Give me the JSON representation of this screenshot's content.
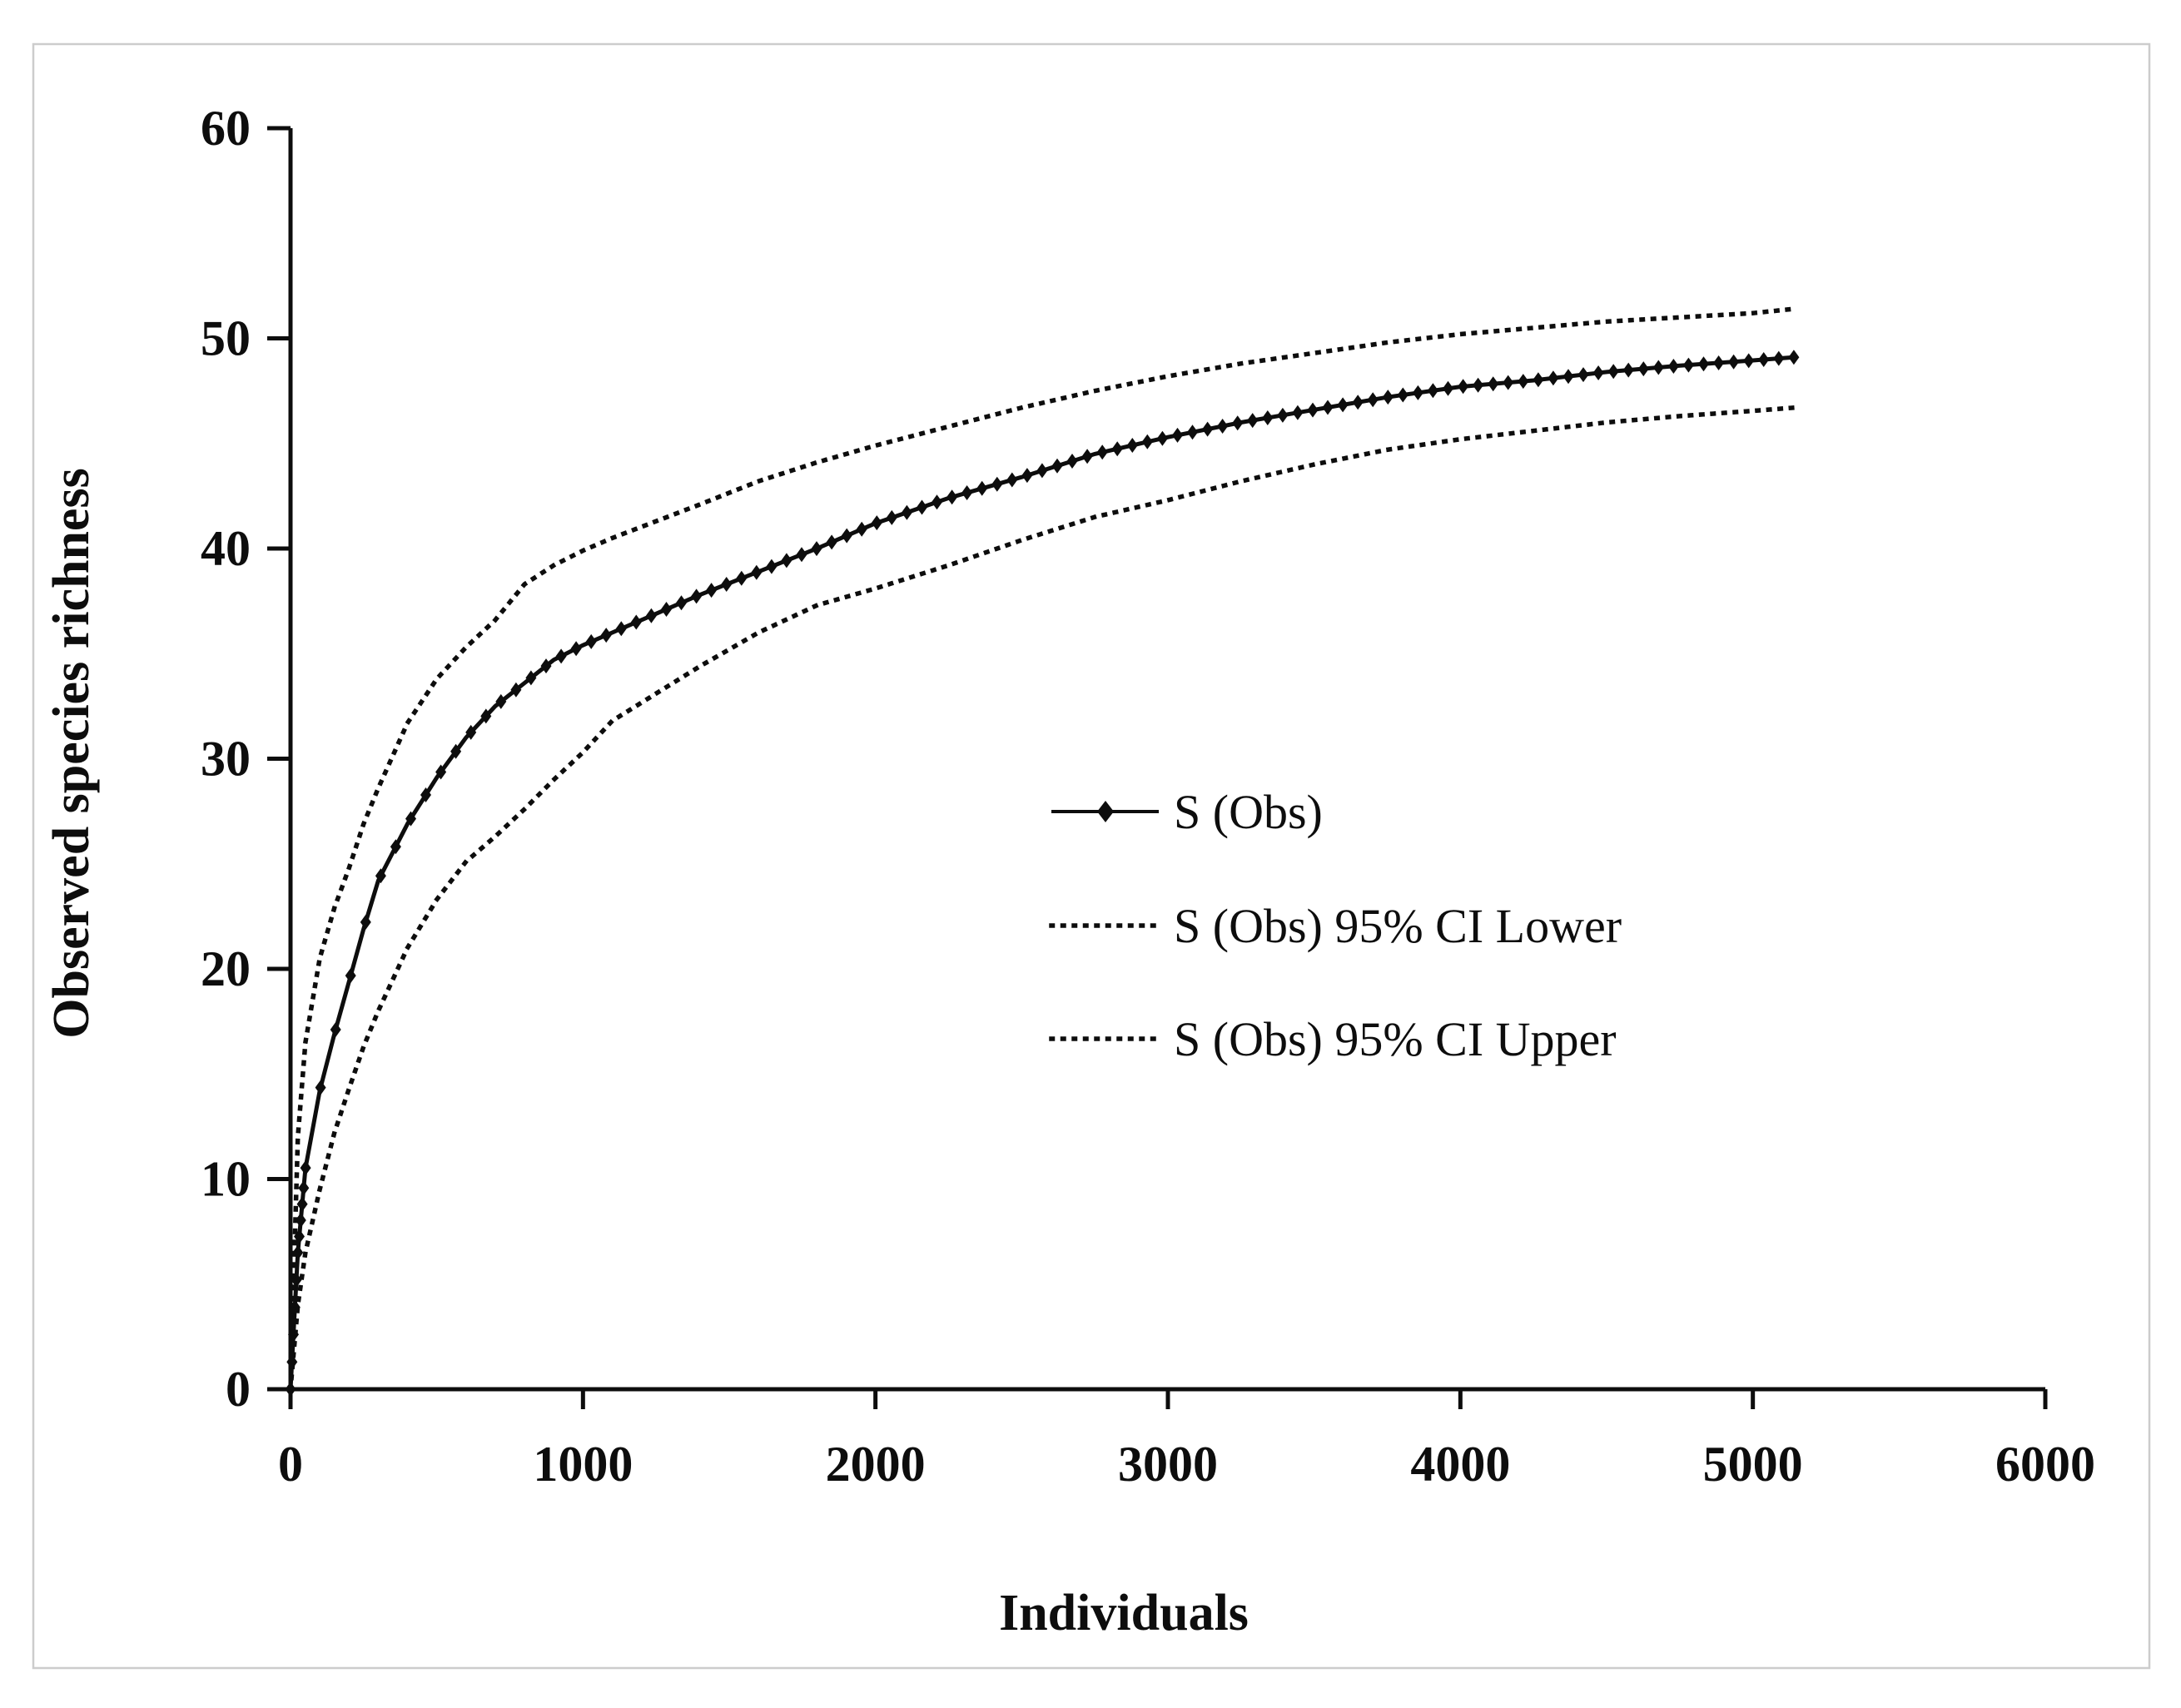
{
  "figure": {
    "background": "#ffffff",
    "border_color": "#cccccc",
    "line_color": "#0d0d0d"
  },
  "chart_data": {
    "type": "line",
    "title": "",
    "xlabel": "Individuals",
    "ylabel": "Observed species richness",
    "xlim": [
      0,
      6000
    ],
    "ylim": [
      0,
      60
    ],
    "x_ticks": [
      0,
      1000,
      2000,
      3000,
      4000,
      5000,
      6000
    ],
    "y_ticks": [
      0,
      10,
      20,
      30,
      40,
      50,
      60
    ],
    "grid": false,
    "legend_position": "middle-right",
    "marker": {
      "shape": "diamond",
      "step_x": 51.4,
      "start_stack_x": [
        5,
        10,
        15,
        20,
        25,
        30,
        35,
        40,
        45
      ]
    },
    "x": [
      0,
      25,
      51,
      100,
      150,
      200,
      250,
      300,
      400,
      500,
      600,
      700,
      800,
      900,
      1000,
      1100,
      1250,
      1400,
      1600,
      1800,
      2000,
      2250,
      2500,
      2750,
      3000,
      3250,
      3500,
      3750,
      4000,
      4250,
      4500,
      4750,
      5000,
      5140
    ],
    "series": [
      {
        "name": "S (Obs)",
        "style": "solid-diamond",
        "values": [
          0,
          6.5,
          10.5,
          14.2,
          16.9,
          19.4,
          21.9,
          24.2,
          26.9,
          29.1,
          31.0,
          32.5,
          33.6,
          34.7,
          35.4,
          36.0,
          36.9,
          37.8,
          38.9,
          40.0,
          41.2,
          42.4,
          43.4,
          44.5,
          45.3,
          46.0,
          46.6,
          47.2,
          47.7,
          48.0,
          48.4,
          48.7,
          48.95,
          49.1
        ]
      },
      {
        "name": "S (Obs) 95% CI Lower",
        "style": "dotted",
        "values": [
          0,
          4.0,
          6.5,
          9.5,
          12.2,
          14.3,
          16.3,
          18.0,
          21.0,
          23.3,
          25.1,
          26.3,
          27.6,
          29.0,
          30.3,
          31.8,
          33.1,
          34.4,
          36.0,
          37.3,
          38.1,
          39.2,
          40.4,
          41.5,
          42.3,
          43.2,
          44.0,
          44.7,
          45.2,
          45.6,
          46.0,
          46.3,
          46.55,
          46.7
        ]
      },
      {
        "name": "S (Obs) 95% CI Upper",
        "style": "dotted",
        "values": [
          0,
          12.0,
          16.5,
          20.5,
          22.9,
          24.8,
          26.9,
          28.6,
          31.7,
          33.8,
          35.3,
          36.6,
          38.3,
          39.2,
          39.9,
          40.5,
          41.3,
          42.1,
          43.2,
          44.1,
          44.9,
          45.8,
          46.7,
          47.5,
          48.2,
          48.8,
          49.3,
          49.8,
          50.2,
          50.5,
          50.8,
          51.0,
          51.2,
          51.4
        ]
      }
    ]
  }
}
